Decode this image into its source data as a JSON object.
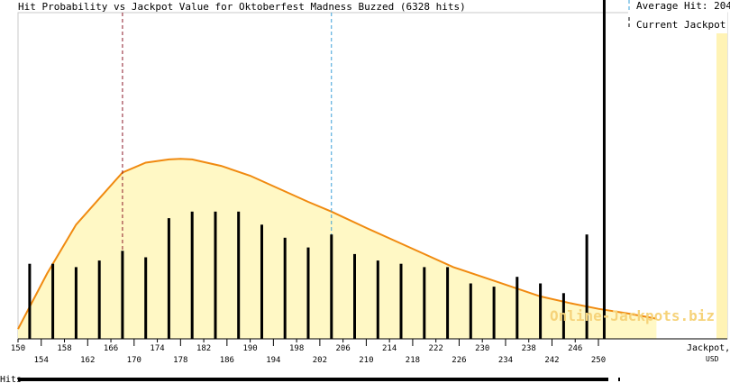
{
  "chart_data": {
    "type": "bar",
    "title": "Hit Probability vs Jackpot Value for Oktoberfest Madness Buzzed (6328 hits)",
    "xlabel": "Jackpot, USD",
    "ylabel": "Hits",
    "watermark": "Online-Jackpots.biz",
    "legend_position": "top-right",
    "legend": {
      "average_label": "Average Hit: 204",
      "current_label": "Current Jackpot"
    },
    "xlim": [
      150,
      260
    ],
    "ylim": [
      0,
      1
    ],
    "x_ticks_upper": [
      "150",
      "158",
      "166",
      "174",
      "182",
      "190",
      "198",
      "206",
      "214",
      "222",
      "230",
      "238",
      "246"
    ],
    "x_ticks_lower": [
      "154",
      "162",
      "170",
      "178",
      "186",
      "194",
      "202",
      "210",
      "218",
      "226",
      "234",
      "242",
      "250"
    ],
    "bars": {
      "x": [
        152,
        156,
        160,
        164,
        168,
        172,
        176,
        180,
        184,
        188,
        192,
        196,
        200,
        204,
        208,
        212,
        216,
        220,
        224,
        228,
        232,
        236,
        240,
        244,
        248
      ],
      "values": [
        0.23,
        0.23,
        0.22,
        0.24,
        0.27,
        0.25,
        0.37,
        0.39,
        0.39,
        0.39,
        0.35,
        0.31,
        0.28,
        0.32,
        0.26,
        0.24,
        0.23,
        0.22,
        0.22,
        0.17,
        0.16,
        0.19,
        0.17,
        0.14,
        0.32
      ]
    },
    "curve": {
      "x": [
        150,
        155,
        160,
        165,
        168,
        172,
        176,
        178,
        180,
        185,
        190,
        195,
        200,
        204,
        210,
        215,
        220,
        225,
        230,
        235,
        240,
        245,
        250,
        255,
        260
      ],
      "values": [
        0.03,
        0.2,
        0.35,
        0.45,
        0.51,
        0.54,
        0.55,
        0.552,
        0.55,
        0.53,
        0.5,
        0.46,
        0.42,
        0.39,
        0.34,
        0.3,
        0.26,
        0.22,
        0.19,
        0.16,
        0.13,
        0.11,
        0.092,
        0.078,
        0.062
      ]
    },
    "markers": {
      "red_dashed": 168,
      "average_hit": 204,
      "current_jackpot": 251
    },
    "colors": {
      "bar": "#000000",
      "curve": "#f08a10",
      "fill": "#fff8c5",
      "red_line": "#8b1a2a",
      "blue_line": "#3aa0d8",
      "axis": "#000000",
      "watermark": "#f6d37a",
      "right_band": "#fff3b5"
    }
  }
}
